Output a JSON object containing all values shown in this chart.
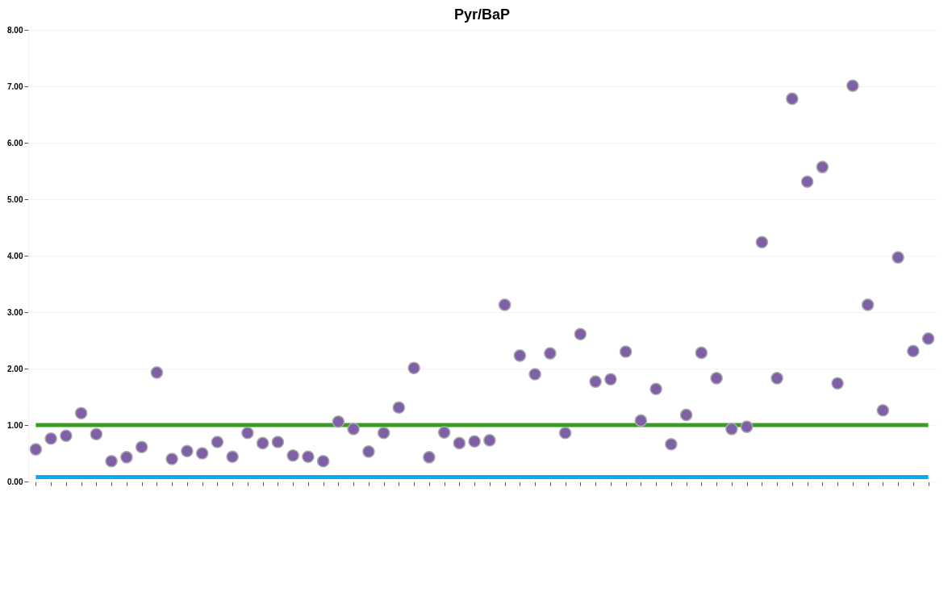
{
  "chart_data": {
    "type": "scatter",
    "title": "Pyr/BaP",
    "categories": [
      null,
      null,
      null,
      null,
      null,
      null,
      null,
      null,
      null,
      null,
      null,
      null,
      null,
      null,
      null,
      null,
      null,
      null,
      null,
      null,
      null,
      null,
      null,
      null,
      null,
      null,
      null,
      null,
      null,
      null,
      null,
      null,
      null,
      null,
      null,
      null,
      null,
      null,
      null,
      null,
      null,
      null,
      null,
      null,
      null,
      null,
      null,
      null,
      null,
      null,
      null,
      null,
      null,
      null,
      null,
      null,
      null,
      null,
      null,
      null
    ],
    "series": [
      {
        "marker": "circle",
        "color": "#7f5fa8",
        "values": [
          0.57,
          0.76,
          0.81,
          1.21,
          0.84,
          0.36,
          0.43,
          0.61,
          1.93,
          0.4,
          0.54,
          0.5,
          0.7,
          0.44,
          0.86,
          0.68,
          0.7,
          0.46,
          0.44,
          0.36,
          1.06,
          0.93,
          0.53,
          0.86,
          1.31,
          2.01,
          0.43,
          0.87,
          0.68,
          0.71,
          0.73,
          3.13,
          2.23,
          1.9,
          2.27,
          0.86,
          2.61,
          1.77,
          1.81,
          2.3,
          1.08,
          1.64,
          0.66,
          1.18,
          2.28,
          1.83,
          0.93,
          0.97,
          4.24,
          1.83,
          6.78,
          5.31,
          5.57,
          1.74,
          7.01,
          3.13,
          1.26,
          3.97,
          2.31,
          2.53
        ]
      },
      {
        "type": "line",
        "color": "#3a9d23",
        "values": [
          1,
          1,
          1,
          1,
          1,
          1,
          1,
          1,
          1,
          1,
          1,
          1,
          1,
          1,
          1,
          1,
          1,
          1,
          1,
          1,
          1,
          1,
          1,
          1,
          1,
          1,
          1,
          1,
          1,
          1,
          1,
          1,
          1,
          1,
          1,
          1,
          1,
          1,
          1,
          1,
          1,
          1,
          1,
          1,
          1,
          1,
          1,
          1,
          1,
          1,
          1,
          1,
          1,
          1,
          1,
          1,
          1,
          1,
          1,
          1
        ]
      },
      {
        "type": "line",
        "color": "#00b0f0",
        "values": [
          0.08,
          0.08,
          0.08,
          0.08,
          0.08,
          0.08,
          0.08,
          0.08,
          0.08,
          0.08,
          0.08,
          0.08,
          0.08,
          0.08,
          0.08,
          0.08,
          0.08,
          0.08,
          0.08,
          0.08,
          0.08,
          0.08,
          0.08,
          0.08,
          0.08,
          0.08,
          0.08,
          0.08,
          0.08,
          0.08,
          0.08,
          0.08,
          0.08,
          0.08,
          0.08,
          0.08,
          0.08,
          0.08,
          0.08,
          0.08,
          0.08,
          0.08,
          0.08,
          0.08,
          0.08,
          0.08,
          0.08,
          0.08,
          0.08,
          0.08,
          0.08,
          0.08,
          0.08,
          0.08,
          0.08,
          0.08,
          0.08,
          0.08,
          0.08,
          0.08
        ]
      }
    ],
    "ylim": [
      0,
      8
    ],
    "yticks": [
      {
        "value": 0,
        "label": "0.00"
      },
      {
        "value": 1,
        "label": "1.00"
      },
      {
        "value": 2,
        "label": "2.00"
      },
      {
        "value": 3,
        "label": "3.00"
      },
      {
        "value": 4,
        "label": "4.00"
      },
      {
        "value": 5,
        "label": "5.00"
      },
      {
        "value": 6,
        "label": "6.00"
      },
      {
        "value": 7,
        "label": "7.00"
      },
      {
        "value": 8,
        "label": "8.00"
      }
    ],
    "grid": "y",
    "tick_labels": "y"
  }
}
